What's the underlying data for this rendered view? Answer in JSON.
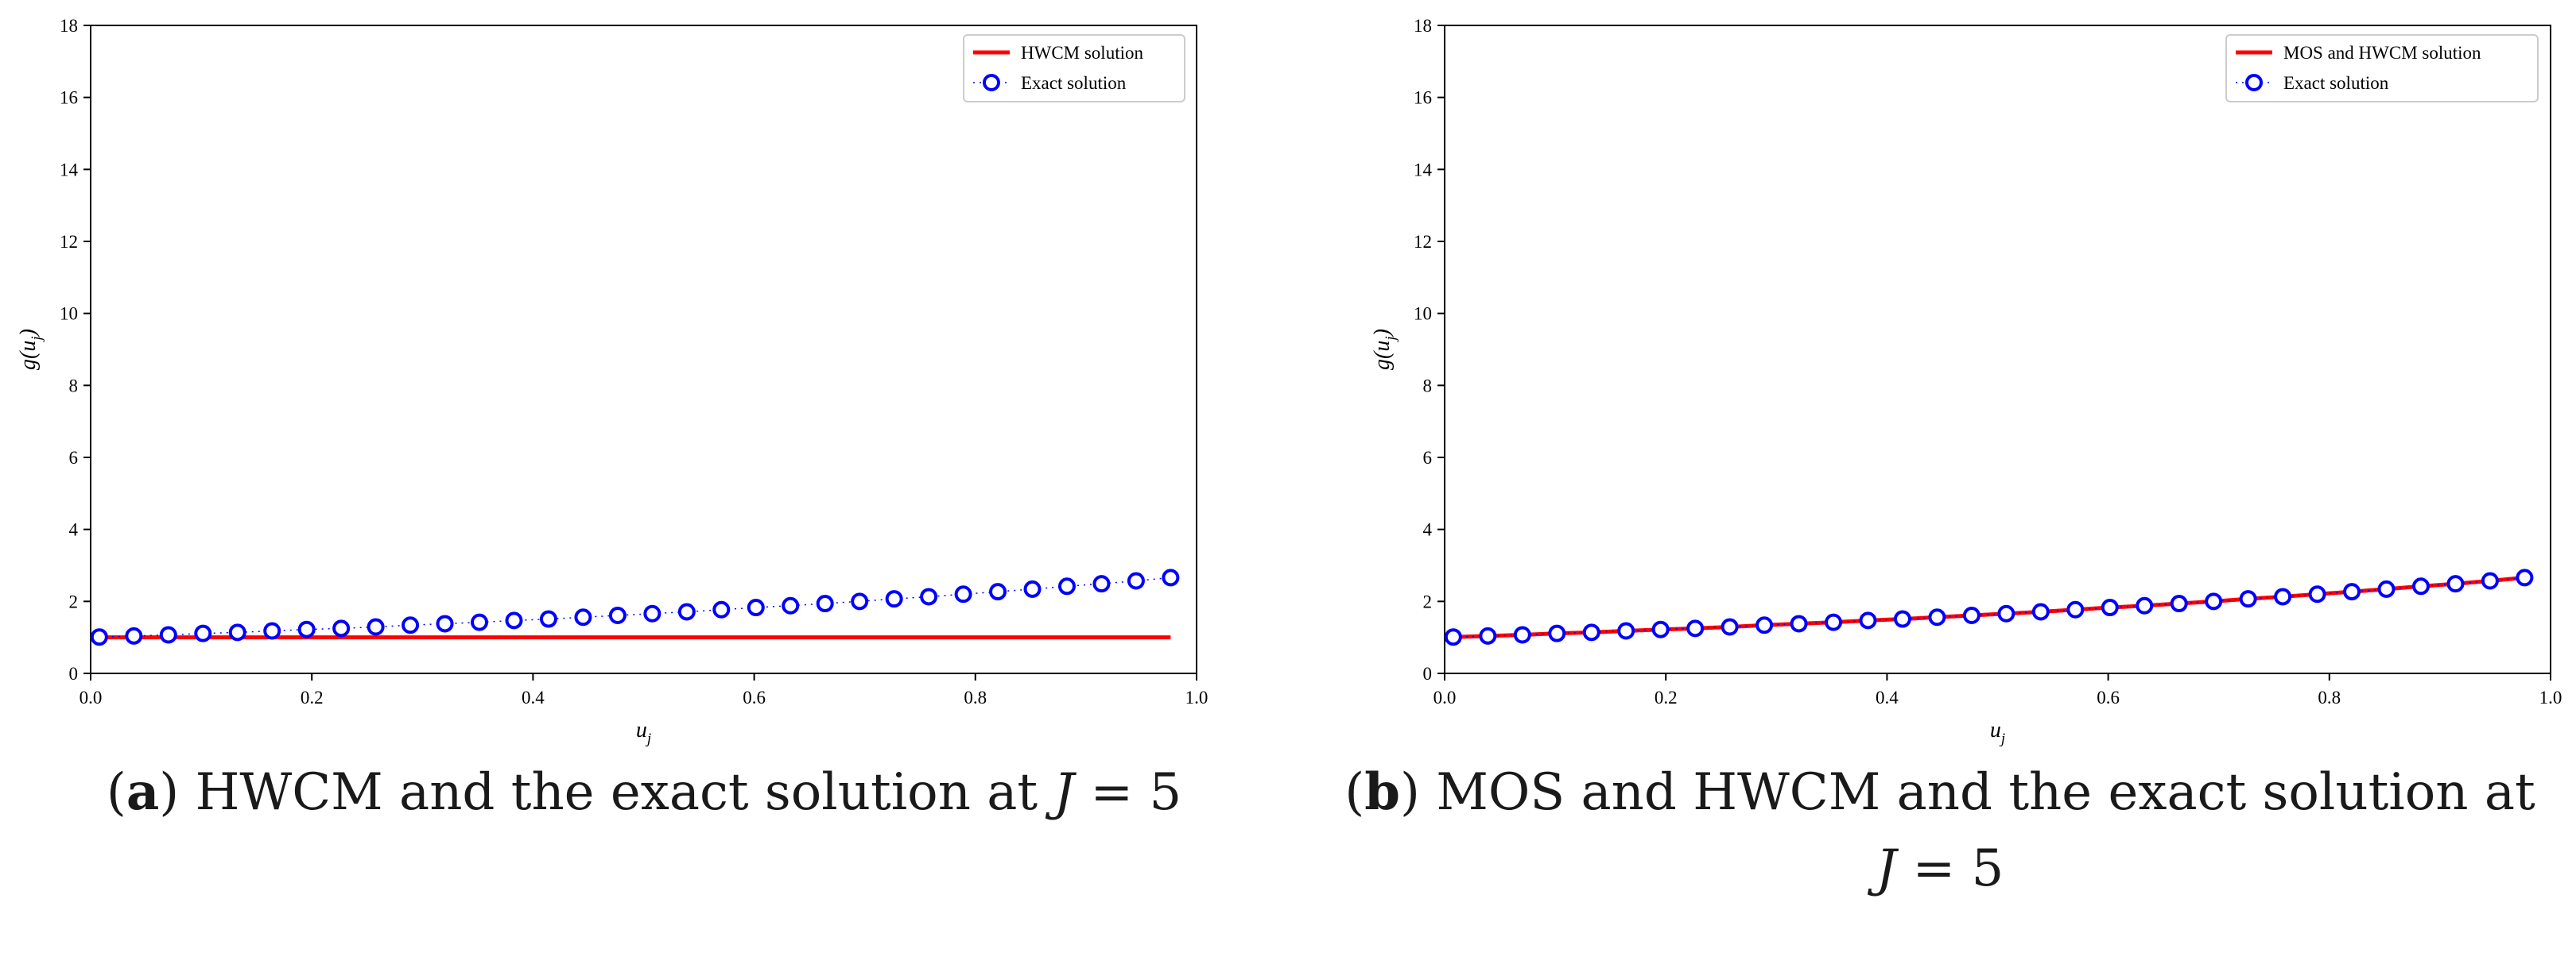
{
  "chart_data": [
    {
      "id": "a",
      "type": "line",
      "xlabel_main": "u",
      "xlabel_sub": "j",
      "ylabel": "g(u_j)",
      "ylabel_fn": "g(",
      "ylabel_var": "u",
      "ylabel_sub": "j",
      "ylabel_close": ")",
      "xlim": [
        0.0,
        1.0
      ],
      "ylim": [
        0,
        18
      ],
      "xticks": [
        0.0,
        0.2,
        0.4,
        0.6,
        0.8,
        1.0
      ],
      "xtick_labels": [
        "0.0",
        "0.2",
        "0.4",
        "0.6",
        "0.8",
        "1.0"
      ],
      "yticks": [
        0,
        2,
        4,
        6,
        8,
        10,
        12,
        14,
        16,
        18
      ],
      "ytick_labels": [
        "0",
        "2",
        "4",
        "6",
        "8",
        "10",
        "12",
        "14",
        "16",
        "18"
      ],
      "legend_position": "top-right",
      "series": [
        {
          "name": "HWCM solution",
          "style": "line",
          "color": "#ff0000",
          "x": [
            0.0078125,
            0.0390625,
            0.0703125,
            0.1015625,
            0.1328125,
            0.1640625,
            0.1953125,
            0.2265625,
            0.2578125,
            0.2890625,
            0.3203125,
            0.3515625,
            0.3828125,
            0.4140625,
            0.4453125,
            0.4765625,
            0.5078125,
            0.5390625,
            0.5703125,
            0.6015625,
            0.6328125,
            0.6640625,
            0.6953125,
            0.7265625,
            0.7578125,
            0.7890625,
            0.8203125,
            0.8515625,
            0.8828125,
            0.9140625,
            0.9453125,
            0.9765625
          ],
          "values": [
            1.0,
            1.0,
            1.0,
            1.0,
            1.0,
            1.0,
            1.0,
            1.0,
            1.0,
            1.0,
            1.0,
            1.0,
            1.0,
            1.0,
            1.0,
            1.0,
            1.0,
            1.0,
            1.0,
            1.0,
            1.0,
            1.0,
            1.0,
            1.0,
            1.0,
            1.0,
            1.0,
            1.0,
            1.0,
            1.0,
            1.0,
            1.0
          ]
        },
        {
          "name": "Exact solution",
          "style": "marker",
          "color": "#0000ff",
          "x": [
            0.0078125,
            0.0390625,
            0.0703125,
            0.1015625,
            0.1328125,
            0.1640625,
            0.1953125,
            0.2265625,
            0.2578125,
            0.2890625,
            0.3203125,
            0.3515625,
            0.3828125,
            0.4140625,
            0.4453125,
            0.4765625,
            0.5078125,
            0.5390625,
            0.5703125,
            0.6015625,
            0.6328125,
            0.6640625,
            0.6953125,
            0.7265625,
            0.7578125,
            0.7890625,
            0.8203125,
            0.8515625,
            0.8828125,
            0.9140625,
            0.9453125,
            0.9765625
          ],
          "values": [
            1.01,
            1.04,
            1.07,
            1.11,
            1.14,
            1.18,
            1.22,
            1.25,
            1.29,
            1.34,
            1.38,
            1.42,
            1.47,
            1.51,
            1.56,
            1.61,
            1.66,
            1.71,
            1.77,
            1.83,
            1.88,
            1.94,
            2.0,
            2.07,
            2.13,
            2.2,
            2.27,
            2.34,
            2.42,
            2.49,
            2.57,
            2.66
          ]
        }
      ],
      "caption": {
        "label": "a",
        "text": " HWCM and the exact solution at ",
        "var": "J",
        "eq": " = 5"
      }
    },
    {
      "id": "b",
      "type": "line",
      "xlabel_main": "u",
      "xlabel_sub": "j",
      "ylabel": "g(u_j)",
      "ylabel_fn": "g(",
      "ylabel_var": "u",
      "ylabel_sub": "j",
      "ylabel_close": ")",
      "xlim": [
        0.0,
        1.0
      ],
      "ylim": [
        0,
        18
      ],
      "xticks": [
        0.0,
        0.2,
        0.4,
        0.6,
        0.8,
        1.0
      ],
      "xtick_labels": [
        "0.0",
        "0.2",
        "0.4",
        "0.6",
        "0.8",
        "1.0"
      ],
      "yticks": [
        0,
        2,
        4,
        6,
        8,
        10,
        12,
        14,
        16,
        18
      ],
      "ytick_labels": [
        "0",
        "2",
        "4",
        "6",
        "8",
        "10",
        "12",
        "14",
        "16",
        "18"
      ],
      "legend_position": "top-right",
      "series": [
        {
          "name": "MOS and HWCM solution",
          "style": "line",
          "color": "#ff0000",
          "x": [
            0.0078125,
            0.0390625,
            0.0703125,
            0.1015625,
            0.1328125,
            0.1640625,
            0.1953125,
            0.2265625,
            0.2578125,
            0.2890625,
            0.3203125,
            0.3515625,
            0.3828125,
            0.4140625,
            0.4453125,
            0.4765625,
            0.5078125,
            0.5390625,
            0.5703125,
            0.6015625,
            0.6328125,
            0.6640625,
            0.6953125,
            0.7265625,
            0.7578125,
            0.7890625,
            0.8203125,
            0.8515625,
            0.8828125,
            0.9140625,
            0.9453125,
            0.9765625
          ],
          "values": [
            1.01,
            1.04,
            1.07,
            1.11,
            1.14,
            1.18,
            1.22,
            1.25,
            1.29,
            1.34,
            1.38,
            1.42,
            1.47,
            1.51,
            1.56,
            1.61,
            1.66,
            1.71,
            1.77,
            1.83,
            1.88,
            1.94,
            2.0,
            2.07,
            2.13,
            2.2,
            2.27,
            2.34,
            2.42,
            2.49,
            2.57,
            2.66
          ]
        },
        {
          "name": "Exact solution",
          "style": "marker",
          "color": "#0000ff",
          "x": [
            0.0078125,
            0.0390625,
            0.0703125,
            0.1015625,
            0.1328125,
            0.1640625,
            0.1953125,
            0.2265625,
            0.2578125,
            0.2890625,
            0.3203125,
            0.3515625,
            0.3828125,
            0.4140625,
            0.4453125,
            0.4765625,
            0.5078125,
            0.5390625,
            0.5703125,
            0.6015625,
            0.6328125,
            0.6640625,
            0.6953125,
            0.7265625,
            0.7578125,
            0.7890625,
            0.8203125,
            0.8515625,
            0.8828125,
            0.9140625,
            0.9453125,
            0.9765625
          ],
          "values": [
            1.01,
            1.04,
            1.07,
            1.11,
            1.14,
            1.18,
            1.22,
            1.25,
            1.29,
            1.34,
            1.38,
            1.42,
            1.47,
            1.51,
            1.56,
            1.61,
            1.66,
            1.71,
            1.77,
            1.83,
            1.88,
            1.94,
            2.0,
            2.07,
            2.13,
            2.2,
            2.27,
            2.34,
            2.42,
            2.49,
            2.57,
            2.66
          ]
        }
      ],
      "caption": {
        "label": "b",
        "text": " MOS and HWCM and the exact solution at",
        "var": "J",
        "eq": " = 5"
      }
    }
  ]
}
